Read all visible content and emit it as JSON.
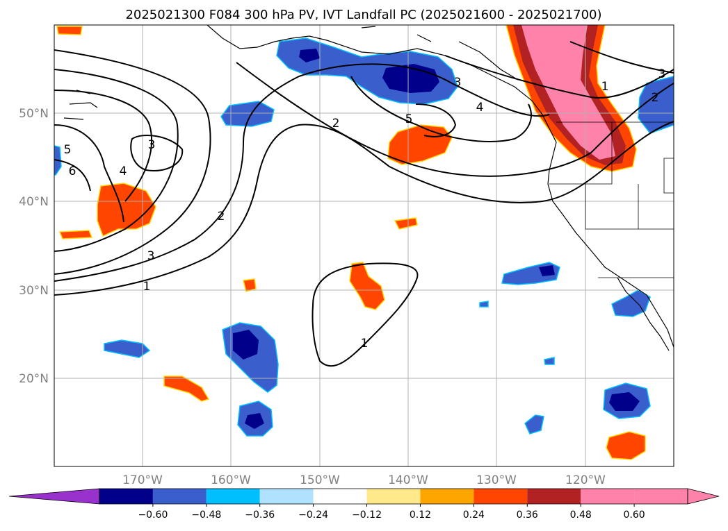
{
  "title": "2025021300 F084 300 hPa PV, IVT Landfall PC (2025021600 - 2025021700)",
  "map": {
    "lat_ticks": [
      {
        "label": "50°N",
        "lat": 50
      },
      {
        "label": "40°N",
        "lat": 40
      },
      {
        "label": "30°N",
        "lat": 30
      },
      {
        "label": "20°N",
        "lat": 20
      }
    ],
    "lon_ticks": [
      {
        "label": "170°W",
        "lon": -170
      },
      {
        "label": "160°W",
        "lon": -160
      },
      {
        "label": "150°W",
        "lon": -150
      },
      {
        "label": "140°W",
        "lon": -140
      },
      {
        "label": "130°W",
        "lon": -130
      },
      {
        "label": "120°W",
        "lon": -120
      }
    ],
    "extent": {
      "lon_min": -180,
      "lon_max": -110,
      "lat_min": 10,
      "lat_max": 60
    },
    "grid": true,
    "pv_contour_labels": [
      "5",
      "6",
      "4",
      "3",
      "3",
      "2",
      "2",
      "1",
      "1",
      "5",
      "3",
      "4",
      "1",
      "2",
      "3",
      "2"
    ]
  },
  "colorbar": {
    "tick_labels": [
      "−0.60",
      "−0.48",
      "−0.36",
      "−0.24",
      "−0.12",
      "0.12",
      "0.24",
      "0.36",
      "0.48",
      "0.60"
    ],
    "colors": [
      "#9932cc",
      "#00008b",
      "#3a5fcd",
      "#00bfff",
      "#b0e2ff",
      "#ffffff",
      "#ffe98a",
      "#ffa500",
      "#ff4500",
      "#b22222",
      "#ff82ab",
      "#ff82ab"
    ],
    "extend": "both"
  }
}
